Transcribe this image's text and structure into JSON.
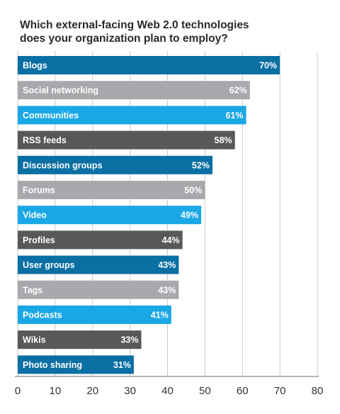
{
  "chart_data": {
    "type": "bar",
    "orientation": "horizontal",
    "title_lines": [
      "Which external-facing Web 2.0 technologies",
      "does your organization plan to employ?"
    ],
    "categories": [
      "Blogs",
      "Social networking",
      "Communities",
      "RSS feeds",
      "Discussion groups",
      "Forums",
      "Video",
      "Profiles",
      "User groups",
      "Tags",
      "Podcasts",
      "Wikis",
      "Photo sharing"
    ],
    "values": [
      70,
      62,
      61,
      58,
      52,
      50,
      49,
      44,
      43,
      43,
      41,
      33,
      31
    ],
    "value_labels": [
      "70%",
      "62%",
      "61%",
      "58%",
      "52%",
      "50%",
      "49%",
      "44%",
      "43%",
      "43%",
      "41%",
      "33%",
      "31%"
    ],
    "xlim": [
      0,
      80
    ],
    "xticks": [
      0,
      10,
      20,
      30,
      40,
      50,
      60,
      70,
      80
    ],
    "grid": true,
    "legend": "none",
    "colors": [
      "#0a6fa3",
      "#a7a9ac",
      "#1aa7e6",
      "#58585b"
    ]
  }
}
